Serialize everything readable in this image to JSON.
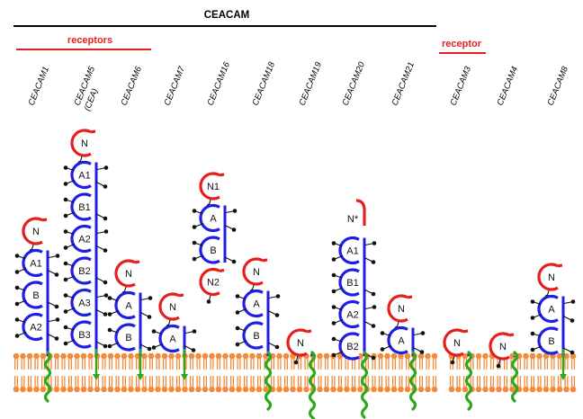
{
  "header": {
    "title": "CEACAM",
    "receptors_label": "receptors",
    "receptor_label": "receptor"
  },
  "colors": {
    "membrane": "#f28c3c",
    "n_domain": "#e61e1e",
    "ig_domain": "#1e1ee6",
    "anchor": "#2ea81a",
    "glycan": "#111111"
  },
  "proteins": [
    {
      "name": "CEACAM1",
      "domains": [
        "N",
        "A1",
        "B",
        "A2"
      ],
      "anchor": "tm"
    },
    {
      "name": "CEACAM5",
      "name2": "(CEA)",
      "domains": [
        "N",
        "A1",
        "B1",
        "A2",
        "B2",
        "A3",
        "B3"
      ],
      "anchor": "gpi"
    },
    {
      "name": "CEACAM6",
      "domains": [
        "N",
        "A",
        "B"
      ],
      "anchor": "gpi"
    },
    {
      "name": "CEACAM7",
      "domains": [
        "N",
        "A"
      ],
      "anchor": "gpi"
    },
    {
      "name": "CEACAM16",
      "domains": [
        "N1",
        "A",
        "B",
        "N2"
      ],
      "anchor": "none"
    },
    {
      "name": "CEACAM18",
      "domains": [
        "N",
        "A",
        "B"
      ],
      "anchor": "tm"
    },
    {
      "name": "CEACAM19",
      "domains": [
        "N"
      ],
      "anchor": "tm"
    },
    {
      "name": "CEACAM20",
      "domains": [
        "N*",
        "A1",
        "B1",
        "A2",
        "B2"
      ],
      "anchor": "tm"
    },
    {
      "name": "CEACAM21",
      "domains": [
        "N",
        "A"
      ],
      "anchor": "tm"
    },
    {
      "name": "CEACAM3",
      "domains": [
        "N"
      ],
      "anchor": "tm"
    },
    {
      "name": "CEACAM4",
      "domains": [
        "N"
      ],
      "anchor": "tm"
    },
    {
      "name": "CEACAM8",
      "domains": [
        "N",
        "A",
        "B"
      ],
      "anchor": "gpi"
    }
  ]
}
